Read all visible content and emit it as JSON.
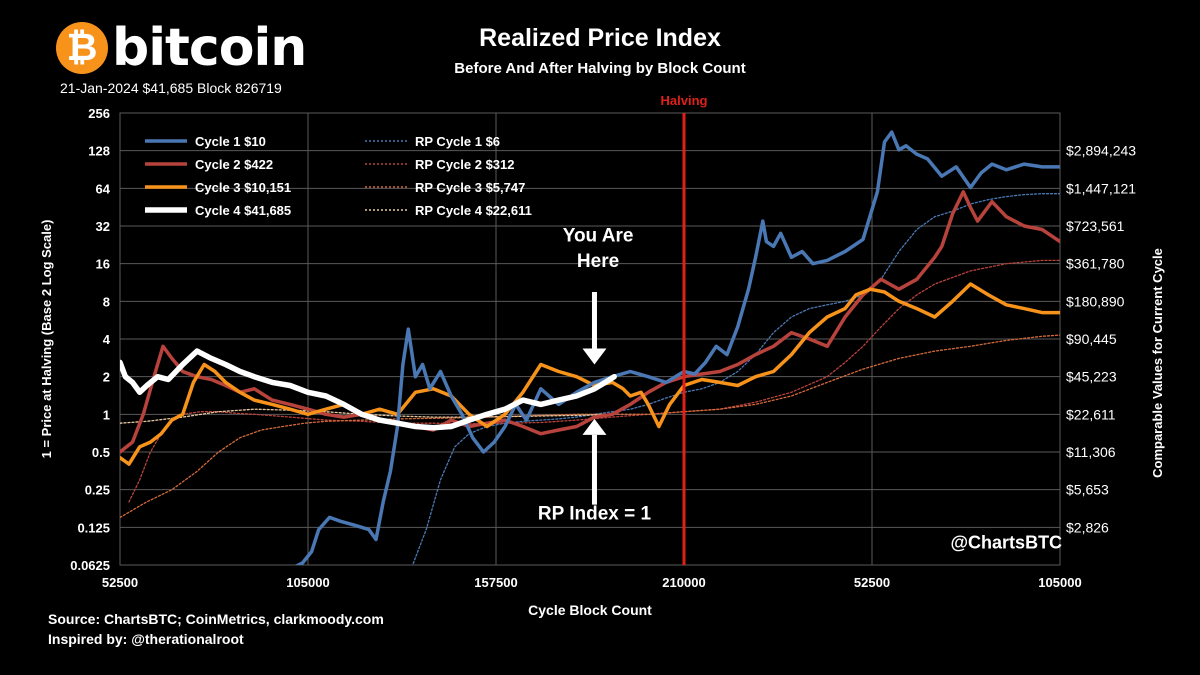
{
  "header": {
    "logo_symbol": "₿",
    "logo_text": "bitcoin",
    "logo_subtext": "21-Jan-2024 $41,685 Block 826719",
    "title": "Realized Price Index",
    "subtitle": "Before And After Halving by Block Count"
  },
  "footer": {
    "source": "Source:  ChartsBTC; CoinMetrics, clarkmoody.com",
    "inspired": "Inspired by: @therationalroot"
  },
  "colors": {
    "background": "#000000",
    "grid": "#5a5a5a",
    "halving": "#e0201a",
    "cycle1": "#4a78b4",
    "cycle2": "#b8433c",
    "cycle3": "#f7931a",
    "cycle4": "#ffffff"
  },
  "chart_data": {
    "type": "line",
    "title": "Realized Price Index",
    "subtitle": "Before And After Halving by Block Count",
    "xlabel": "Cycle Block Count",
    "ylabel": "1 = Price at Halving (Base 2 Log Scale)",
    "y2label": "Comparable Values for Current Cycle",
    "y_scale": "log2",
    "ylim": [
      0.0625,
      256
    ],
    "x_range": [
      52500,
      315000
    ],
    "y_ticks": [
      "0.0625",
      "0.125",
      "0.25",
      "0.5",
      "1",
      "2",
      "4",
      "8",
      "16",
      "32",
      "64",
      "128",
      "256"
    ],
    "y_tick_values": [
      0.0625,
      0.125,
      0.25,
      0.5,
      1,
      2,
      4,
      8,
      16,
      32,
      64,
      128,
      256
    ],
    "y2_ticks": [
      "$2,826",
      "$5,653",
      "$11,306",
      "$22,611",
      "$45,223",
      "$90,445",
      "$180,890",
      "$361,780",
      "$723,561",
      "$1,447,121",
      "$2,894,243"
    ],
    "y2_tick_values": [
      0.125,
      0.25,
      0.5,
      1,
      2,
      4,
      8,
      16,
      32,
      64,
      128
    ],
    "x_tick_positions": [
      52500,
      105000,
      157500,
      210000,
      262500,
      315000
    ],
    "x_ticks": [
      "52500",
      "105000",
      "157500",
      "210000",
      "52500",
      "105000"
    ],
    "halving": {
      "x": 210000,
      "label": "Halving"
    },
    "legend": {
      "position": "top-left",
      "entries": [
        {
          "label": "Cycle 1  $10",
          "series": "Cycle 1"
        },
        {
          "label": "Cycle 2  $422",
          "series": "Cycle 2"
        },
        {
          "label": "Cycle 3  $10,151",
          "series": "Cycle 3"
        },
        {
          "label": "Cycle 4  $41,685",
          "series": "Cycle 4"
        },
        {
          "label": "RP Cycle 1  $6",
          "series": "RP Cycle 1"
        },
        {
          "label": "RP Cycle 2  $312",
          "series": "RP Cycle 2"
        },
        {
          "label": "RP Cycle 3  $5,747",
          "series": "RP Cycle 3"
        },
        {
          "label": "RP Cycle 4  $22,611",
          "series": "RP Cycle 4"
        }
      ]
    },
    "annotations": [
      {
        "text": "You Are",
        "x": 186000,
        "y": 24
      },
      {
        "text": "Here",
        "x": 186000,
        "y": 15
      },
      {
        "text": "RP Index = 1",
        "x": 185000,
        "y": 0.145
      },
      {
        "text": "@ChartsBTC",
        "x": 300000,
        "y": 0.085
      }
    ],
    "arrows": [
      {
        "from": [
          185000,
          9.5
        ],
        "to": [
          185000,
          2.5
        ]
      },
      {
        "from": [
          185000,
          0.19
        ],
        "to": [
          185000,
          0.92
        ]
      }
    ],
    "series": [
      {
        "name": "Cycle 1",
        "color": "#4a78b4",
        "width": 3.5,
        "dashed": false,
        "x": [
          95000,
          100000,
          103500,
          106000,
          108000,
          111000,
          114000,
          118000,
          122000,
          124000,
          126000,
          128000,
          130000,
          131500,
          133000,
          135000,
          137000,
          139000,
          142000,
          145000,
          148000,
          151000,
          154000,
          157000,
          160000,
          163000,
          166000,
          170000,
          175000,
          180000,
          185000,
          190000,
          195000,
          200000,
          205000,
          210000,
          213000,
          216000,
          219000,
          222000,
          225000,
          228000,
          230000,
          232000,
          233000,
          235000,
          237000,
          240000,
          243000,
          246000,
          250000,
          255000,
          260000,
          264000,
          266000,
          268000,
          270000,
          272000,
          275000,
          278000,
          282000,
          286000,
          290000,
          293000,
          296000,
          300000,
          305000,
          310000,
          315000
        ],
        "y": [
          0.06,
          0.058,
          0.065,
          0.08,
          0.12,
          0.15,
          0.14,
          0.13,
          0.12,
          0.1,
          0.2,
          0.35,
          0.8,
          2.5,
          4.8,
          2.0,
          2.5,
          1.6,
          2.2,
          1.4,
          1.0,
          0.65,
          0.5,
          0.6,
          0.8,
          1.2,
          0.9,
          1.6,
          1.2,
          1.5,
          1.8,
          2.0,
          2.2,
          2.0,
          1.8,
          2.2,
          2.1,
          2.6,
          3.5,
          3.0,
          5.0,
          10.0,
          18.0,
          35.0,
          24.0,
          22.0,
          28.0,
          18.0,
          20.0,
          16.0,
          17.0,
          20.0,
          25.0,
          60.0,
          150.0,
          180.0,
          130.0,
          140.0,
          120.0,
          110.0,
          80.0,
          95.0,
          65.0,
          85.0,
          100.0,
          90.0,
          100.0,
          95.0,
          95.0
        ]
      },
      {
        "name": "Cycle 2",
        "color": "#b8433c",
        "width": 3.5,
        "dashed": false,
        "x": [
          52500,
          56000,
          59000,
          62000,
          64500,
          67000,
          70000,
          74000,
          78000,
          82000,
          86000,
          90000,
          95000,
          100000,
          105000,
          110000,
          115000,
          120000,
          125000,
          130000,
          135000,
          140000,
          145000,
          150000,
          155000,
          160000,
          165000,
          170000,
          175000,
          180000,
          185000,
          190000,
          195000,
          200000,
          205000,
          210000,
          215000,
          220000,
          225000,
          230000,
          235000,
          240000,
          245000,
          250000,
          255000,
          260000,
          265000,
          270000,
          275000,
          280000,
          282000,
          285000,
          288000,
          290000,
          292000,
          296000,
          300000,
          305000,
          310000,
          315000
        ],
        "y": [
          0.5,
          0.6,
          1.0,
          2.0,
          3.5,
          2.8,
          2.2,
          2.0,
          1.9,
          1.7,
          1.5,
          1.6,
          1.3,
          1.2,
          1.1,
          1.0,
          0.95,
          1.0,
          0.9,
          0.85,
          0.8,
          0.75,
          0.9,
          0.8,
          0.85,
          0.9,
          0.8,
          0.7,
          0.75,
          0.8,
          0.95,
          1.0,
          1.2,
          1.5,
          1.8,
          2.0,
          2.1,
          2.2,
          2.5,
          3.0,
          3.5,
          4.5,
          4.0,
          3.5,
          6.0,
          9.0,
          12.0,
          10.0,
          12.0,
          18.0,
          22.0,
          40.0,
          60.0,
          45.0,
          35.0,
          50.0,
          38.0,
          32.0,
          30.0,
          24.0
        ]
      },
      {
        "name": "Cycle 3",
        "color": "#f7931a",
        "width": 3.5,
        "dashed": false,
        "x": [
          52500,
          55000,
          58000,
          61000,
          64000,
          67000,
          70000,
          73000,
          76000,
          79000,
          82000,
          86000,
          90000,
          95000,
          100000,
          105000,
          110000,
          115000,
          120000,
          125000,
          130000,
          135000,
          140000,
          145000,
          150000,
          155000,
          160000,
          165000,
          170000,
          175000,
          180000,
          185000,
          190000,
          193000,
          195000,
          198000,
          200000,
          203000,
          206000,
          210000,
          215000,
          220000,
          225000,
          230000,
          235000,
          240000,
          245000,
          250000,
          255000,
          258000,
          262000,
          266000,
          270000,
          275000,
          280000,
          285000,
          290000,
          295000,
          300000,
          305000,
          310000,
          315000
        ],
        "y": [
          0.45,
          0.4,
          0.55,
          0.6,
          0.7,
          0.9,
          1.0,
          1.8,
          2.5,
          2.2,
          1.8,
          1.5,
          1.3,
          1.2,
          1.1,
          1.0,
          1.1,
          1.2,
          1.0,
          1.1,
          1.0,
          1.5,
          1.6,
          1.4,
          1.0,
          0.8,
          1.0,
          1.5,
          2.5,
          2.2,
          2.0,
          1.7,
          1.8,
          1.6,
          1.4,
          1.5,
          1.2,
          0.8,
          1.2,
          1.7,
          1.9,
          1.8,
          1.7,
          2.0,
          2.2,
          3.0,
          4.5,
          6.0,
          7.0,
          9.0,
          10.0,
          9.5,
          8.0,
          7.0,
          6.0,
          8.0,
          11.0,
          9.0,
          7.5,
          7.0,
          6.5,
          6.5
        ]
      },
      {
        "name": "Cycle 4",
        "color": "#ffffff",
        "width": 5.5,
        "dashed": false,
        "x": [
          52500,
          54000,
          56000,
          58000,
          60000,
          63000,
          66000,
          70000,
          74000,
          78000,
          82000,
          86000,
          90000,
          95000,
          100000,
          105000,
          110000,
          115000,
          120000,
          125000,
          130000,
          135000,
          140000,
          145000,
          150000,
          155000,
          160000,
          165000,
          170000,
          175000,
          180000,
          185000,
          188000,
          190500
        ],
        "y": [
          2.6,
          2.0,
          1.8,
          1.5,
          1.7,
          2.0,
          1.9,
          2.5,
          3.2,
          2.8,
          2.5,
          2.2,
          2.0,
          1.8,
          1.7,
          1.5,
          1.4,
          1.2,
          1.0,
          0.9,
          0.85,
          0.8,
          0.78,
          0.8,
          0.9,
          1.0,
          1.1,
          1.3,
          1.2,
          1.3,
          1.4,
          1.6,
          1.8,
          2.0
        ]
      },
      {
        "name": "RP Cycle 1",
        "color": "#4a78b4",
        "width": 1.3,
        "dashed": true,
        "x": [
          134000,
          138000,
          142000,
          146000,
          150000,
          155000,
          160000,
          165000,
          170000,
          175000,
          180000,
          185000,
          190000,
          195000,
          200000,
          205000,
          210000,
          215000,
          220000,
          225000,
          230000,
          235000,
          240000,
          245000,
          250000,
          255000,
          260000,
          265000,
          270000,
          275000,
          280000,
          285000,
          290000,
          295000,
          300000,
          305000,
          310000,
          315000
        ],
        "y": [
          0.06,
          0.12,
          0.3,
          0.55,
          0.7,
          0.8,
          0.85,
          0.88,
          0.9,
          0.92,
          0.95,
          1.0,
          1.05,
          1.1,
          1.2,
          1.35,
          1.5,
          1.6,
          1.8,
          2.2,
          3.0,
          4.5,
          6.0,
          7.0,
          7.5,
          8.0,
          9.0,
          12.0,
          20.0,
          30.0,
          38.0,
          42.0,
          48.0,
          52.0,
          55.0,
          57.0,
          58.0,
          58.0
        ]
      },
      {
        "name": "RP Cycle 2",
        "color": "#b8433c",
        "width": 1.3,
        "dashed": true,
        "x": [
          55000,
          58000,
          61000,
          64000,
          67000,
          70000,
          75000,
          80000,
          85000,
          90000,
          100000,
          110000,
          120000,
          130000,
          140000,
          150000,
          160000,
          170000,
          180000,
          190000,
          200000,
          210000,
          220000,
          230000,
          240000,
          250000,
          255000,
          260000,
          265000,
          270000,
          275000,
          280000,
          290000,
          300000,
          310000,
          315000
        ],
        "y": [
          0.2,
          0.3,
          0.5,
          0.7,
          0.9,
          1.0,
          1.05,
          1.05,
          1.02,
          1.0,
          0.95,
          0.9,
          0.88,
          0.85,
          0.85,
          0.84,
          0.85,
          0.86,
          0.9,
          0.95,
          1.0,
          1.05,
          1.1,
          1.25,
          1.5,
          2.0,
          2.6,
          3.5,
          5.0,
          7.0,
          9.0,
          11.0,
          14.0,
          16.0,
          17.0,
          17.0
        ]
      },
      {
        "name": "RP Cycle 3",
        "color": "#d2693c",
        "width": 1.3,
        "dashed": true,
        "x": [
          52500,
          60000,
          67000,
          74000,
          80000,
          86000,
          92000,
          98000,
          104000,
          110000,
          120000,
          130000,
          140000,
          150000,
          160000,
          170000,
          180000,
          190000,
          200000,
          210000,
          220000,
          230000,
          240000,
          250000,
          260000,
          270000,
          280000,
          290000,
          300000,
          310000,
          315000
        ],
        "y": [
          0.15,
          0.2,
          0.25,
          0.35,
          0.5,
          0.65,
          0.75,
          0.8,
          0.85,
          0.88,
          0.9,
          0.92,
          0.93,
          0.94,
          0.96,
          0.98,
          1.0,
          1.0,
          1.0,
          1.05,
          1.1,
          1.2,
          1.4,
          1.8,
          2.3,
          2.8,
          3.2,
          3.5,
          3.9,
          4.2,
          4.3
        ]
      },
      {
        "name": "RP Cycle 4",
        "color": "#e8c8a0",
        "width": 1.3,
        "dashed": true,
        "x": [
          52500,
          60000,
          70000,
          80000,
          90000,
          100000,
          110000,
          120000,
          130000,
          140000,
          150000,
          160000,
          170000,
          180000,
          190500
        ],
        "y": [
          0.85,
          0.88,
          0.95,
          1.05,
          1.1,
          1.08,
          1.05,
          1.0,
          0.97,
          0.95,
          0.95,
          0.96,
          0.97,
          0.98,
          1.0
        ]
      }
    ]
  }
}
